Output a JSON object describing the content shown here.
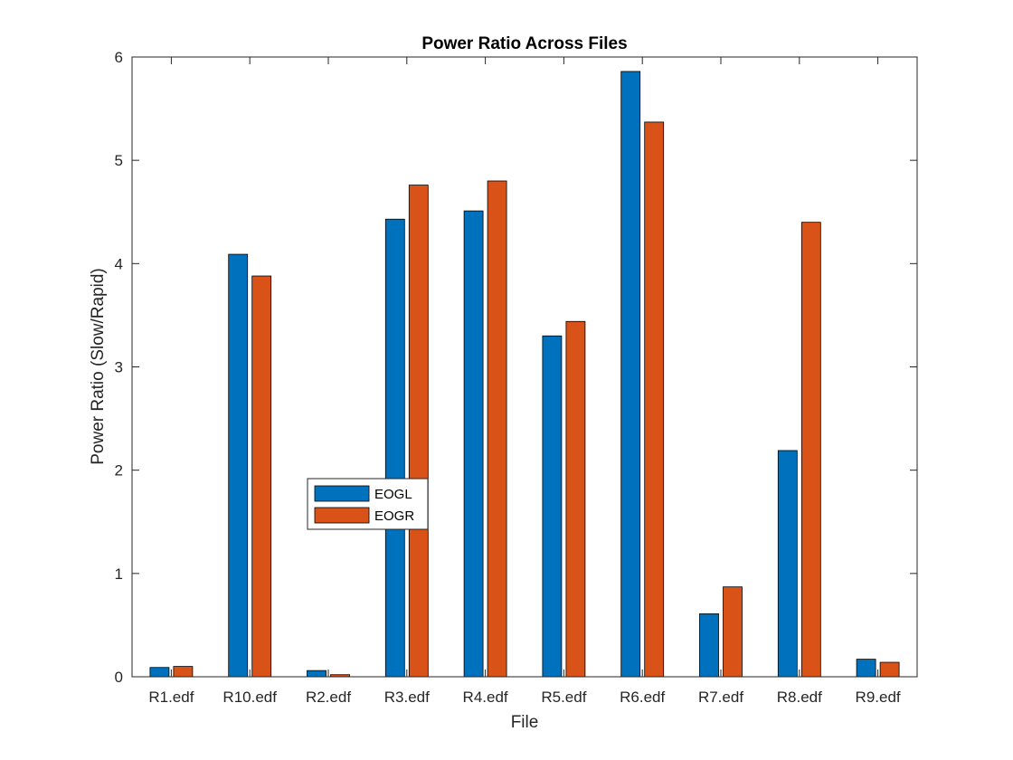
{
  "chart_data": {
    "type": "bar",
    "title": "Power Ratio Across Files",
    "xlabel": "File",
    "ylabel": "Power Ratio (Slow/Rapid)",
    "categories": [
      "R1.edf",
      "R10.edf",
      "R2.edf",
      "R3.edf",
      "R4.edf",
      "R5.edf",
      "R6.edf",
      "R7.edf",
      "R8.edf",
      "R9.edf"
    ],
    "series": [
      {
        "name": "EOGL",
        "color": "#0072BD",
        "values": [
          0.09,
          4.09,
          0.06,
          4.43,
          4.51,
          3.3,
          5.86,
          0.61,
          2.19,
          0.17
        ]
      },
      {
        "name": "EOGR",
        "color": "#D95319",
        "values": [
          0.1,
          3.88,
          0.02,
          4.76,
          4.8,
          3.44,
          5.37,
          0.87,
          4.4,
          0.14
        ]
      }
    ],
    "ylim": [
      0,
      6
    ],
    "yticks": [
      "0",
      "1",
      "2",
      "3",
      "4",
      "5",
      "6"
    ],
    "grid": false,
    "legend_position": "center-left"
  }
}
